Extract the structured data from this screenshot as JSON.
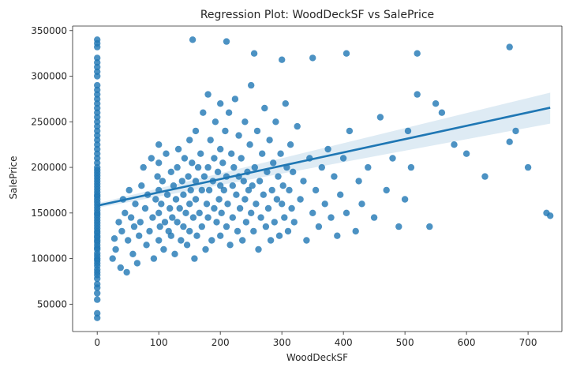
{
  "chart_data": {
    "type": "scatter",
    "title": "Regression Plot: WoodDeckSF vs SalePrice",
    "xlabel": "WoodDeckSF",
    "ylabel": "SalePrice",
    "xlim": [
      -40,
      755
    ],
    "ylim": [
      20000,
      355000
    ],
    "x_ticks": [
      0,
      100,
      200,
      300,
      400,
      500,
      600,
      700
    ],
    "y_ticks": [
      50000,
      100000,
      150000,
      200000,
      250000,
      300000,
      350000
    ],
    "x_tick_labels": [
      "0",
      "100",
      "200",
      "300",
      "400",
      "500",
      "600",
      "700"
    ],
    "y_tick_labels": [
      "50000",
      "100000",
      "150000",
      "200000",
      "250000",
      "300000",
      "350000"
    ],
    "grid": false,
    "legend": "none",
    "colors": {
      "points": "#1f77b4",
      "line": "#1f77b4",
      "band": "#1f77b4",
      "spine": "#262626",
      "text": "#262626"
    },
    "regression": {
      "x_range": [
        0,
        736
      ],
      "intercept": 158000,
      "slope": 146,
      "ci_lower_at_end": 248000,
      "ci_upper_at_end": 282000,
      "ci_lower_at_start": 155500,
      "ci_upper_at_start": 160500
    },
    "points": [
      [
        0,
        35000
      ],
      [
        0,
        40000
      ],
      [
        0,
        55000
      ],
      [
        0,
        62000
      ],
      [
        0,
        68000
      ],
      [
        0,
        72000
      ],
      [
        0,
        78000
      ],
      [
        0,
        82000
      ],
      [
        0,
        85000
      ],
      [
        0,
        88000
      ],
      [
        0,
        92000
      ],
      [
        0,
        95000
      ],
      [
        0,
        98000
      ],
      [
        0,
        100000
      ],
      [
        0,
        103000
      ],
      [
        0,
        106000
      ],
      [
        0,
        110000
      ],
      [
        0,
        112000
      ],
      [
        0,
        115000
      ],
      [
        0,
        118000
      ],
      [
        0,
        120000
      ],
      [
        0,
        123000
      ],
      [
        0,
        125000
      ],
      [
        0,
        128000
      ],
      [
        0,
        130000
      ],
      [
        0,
        133000
      ],
      [
        0,
        136000
      ],
      [
        0,
        139000
      ],
      [
        0,
        142000
      ],
      [
        0,
        145000
      ],
      [
        0,
        148000
      ],
      [
        0,
        150000
      ],
      [
        0,
        153000
      ],
      [
        0,
        156000
      ],
      [
        0,
        159000
      ],
      [
        0,
        162000
      ],
      [
        0,
        165000
      ],
      [
        0,
        168000
      ],
      [
        0,
        170000
      ],
      [
        0,
        173000
      ],
      [
        0,
        176000
      ],
      [
        0,
        179000
      ],
      [
        0,
        182000
      ],
      [
        0,
        185000
      ],
      [
        0,
        188000
      ],
      [
        0,
        191000
      ],
      [
        0,
        194000
      ],
      [
        0,
        197000
      ],
      [
        0,
        200000
      ],
      [
        0,
        205000
      ],
      [
        0,
        210000
      ],
      [
        0,
        215000
      ],
      [
        0,
        220000
      ],
      [
        0,
        225000
      ],
      [
        0,
        230000
      ],
      [
        0,
        235000
      ],
      [
        0,
        240000
      ],
      [
        0,
        245000
      ],
      [
        0,
        250000
      ],
      [
        0,
        255000
      ],
      [
        0,
        260000
      ],
      [
        0,
        265000
      ],
      [
        0,
        270000
      ],
      [
        0,
        275000
      ],
      [
        0,
        280000
      ],
      [
        0,
        285000
      ],
      [
        0,
        290000
      ],
      [
        0,
        300000
      ],
      [
        0,
        305000
      ],
      [
        0,
        310000
      ],
      [
        0,
        315000
      ],
      [
        0,
        320000
      ],
      [
        0,
        332000
      ],
      [
        0,
        336000
      ],
      [
        0,
        340000
      ],
      [
        25,
        100000
      ],
      [
        28,
        122000
      ],
      [
        30,
        110000
      ],
      [
        35,
        140000
      ],
      [
        38,
        90000
      ],
      [
        40,
        130000
      ],
      [
        42,
        165000
      ],
      [
        45,
        150000
      ],
      [
        48,
        85000
      ],
      [
        50,
        120000
      ],
      [
        52,
        175000
      ],
      [
        55,
        145000
      ],
      [
        58,
        105000
      ],
      [
        60,
        135000
      ],
      [
        62,
        160000
      ],
      [
        65,
        95000
      ],
      [
        68,
        125000
      ],
      [
        70,
        140000
      ],
      [
        72,
        180000
      ],
      [
        75,
        200000
      ],
      [
        78,
        155000
      ],
      [
        80,
        115000
      ],
      [
        82,
        170000
      ],
      [
        85,
        130000
      ],
      [
        88,
        210000
      ],
      [
        90,
        145000
      ],
      [
        92,
        100000
      ],
      [
        95,
        165000
      ],
      [
        98,
        190000
      ],
      [
        100,
        120000
      ],
      [
        100,
        150000
      ],
      [
        100,
        175000
      ],
      [
        100,
        205000
      ],
      [
        100,
        225000
      ],
      [
        102,
        135000
      ],
      [
        104,
        160000
      ],
      [
        106,
        185000
      ],
      [
        108,
        110000
      ],
      [
        110,
        140000
      ],
      [
        112,
        215000
      ],
      [
        114,
        170000
      ],
      [
        116,
        130000
      ],
      [
        118,
        155000
      ],
      [
        120,
        195000
      ],
      [
        120,
        125000
      ],
      [
        122,
        145000
      ],
      [
        124,
        180000
      ],
      [
        126,
        105000
      ],
      [
        128,
        165000
      ],
      [
        130,
        200000
      ],
      [
        130,
        140000
      ],
      [
        132,
        220000
      ],
      [
        134,
        155000
      ],
      [
        136,
        120000
      ],
      [
        138,
        185000
      ],
      [
        140,
        170000
      ],
      [
        140,
        135000
      ],
      [
        142,
        210000
      ],
      [
        144,
        150000
      ],
      [
        146,
        115000
      ],
      [
        148,
        190000
      ],
      [
        150,
        160000
      ],
      [
        150,
        230000
      ],
      [
        150,
        130000
      ],
      [
        152,
        175000
      ],
      [
        154,
        205000
      ],
      [
        156,
        145000
      ],
      [
        158,
        100000
      ],
      [
        160,
        185000
      ],
      [
        160,
        240000
      ],
      [
        160,
        165000
      ],
      [
        162,
        125000
      ],
      [
        164,
        200000
      ],
      [
        166,
        150000
      ],
      [
        168,
        215000
      ],
      [
        170,
        175000
      ],
      [
        170,
        135000
      ],
      [
        172,
        260000
      ],
      [
        174,
        190000
      ],
      [
        176,
        110000
      ],
      [
        178,
        160000
      ],
      [
        180,
        200000
      ],
      [
        180,
        145000
      ],
      [
        180,
        280000
      ],
      [
        182,
        175000
      ],
      [
        184,
        230000
      ],
      [
        186,
        120000
      ],
      [
        188,
        185000
      ],
      [
        190,
        155000
      ],
      [
        190,
        210000
      ],
      [
        192,
        250000
      ],
      [
        194,
        140000
      ],
      [
        196,
        195000
      ],
      [
        198,
        165000
      ],
      [
        200,
        180000
      ],
      [
        200,
        125000
      ],
      [
        200,
        220000
      ],
      [
        200,
        270000
      ],
      [
        202,
        150000
      ],
      [
        204,
        205000
      ],
      [
        206,
        175000
      ],
      [
        208,
        240000
      ],
      [
        210,
        135000
      ],
      [
        210,
        190000
      ],
      [
        212,
        160000
      ],
      [
        214,
        260000
      ],
      [
        216,
        115000
      ],
      [
        218,
        215000
      ],
      [
        220,
        180000
      ],
      [
        220,
        145000
      ],
      [
        222,
        200000
      ],
      [
        224,
        275000
      ],
      [
        226,
        170000
      ],
      [
        228,
        130000
      ],
      [
        230,
        190000
      ],
      [
        230,
        235000
      ],
      [
        232,
        155000
      ],
      [
        234,
        210000
      ],
      [
        236,
        120000
      ],
      [
        238,
        185000
      ],
      [
        240,
        165000
      ],
      [
        240,
        250000
      ],
      [
        242,
        140000
      ],
      [
        244,
        195000
      ],
      [
        246,
        175000
      ],
      [
        248,
        225000
      ],
      [
        250,
        150000
      ],
      [
        250,
        290000
      ],
      [
        252,
        180000
      ],
      [
        254,
        130000
      ],
      [
        256,
        200000
      ],
      [
        258,
        160000
      ],
      [
        260,
        240000
      ],
      [
        262,
        110000
      ],
      [
        264,
        185000
      ],
      [
        266,
        145000
      ],
      [
        268,
        215000
      ],
      [
        270,
        170000
      ],
      [
        272,
        265000
      ],
      [
        274,
        135000
      ],
      [
        276,
        195000
      ],
      [
        278,
        155000
      ],
      [
        280,
        230000
      ],
      [
        282,
        120000
      ],
      [
        284,
        175000
      ],
      [
        286,
        205000
      ],
      [
        288,
        140000
      ],
      [
        290,
        250000
      ],
      [
        292,
        165000
      ],
      [
        294,
        190000
      ],
      [
        296,
        125000
      ],
      [
        298,
        215000
      ],
      [
        300,
        160000
      ],
      [
        302,
        180000
      ],
      [
        304,
        145000
      ],
      [
        306,
        270000
      ],
      [
        308,
        200000
      ],
      [
        310,
        130000
      ],
      [
        312,
        175000
      ],
      [
        314,
        225000
      ],
      [
        316,
        155000
      ],
      [
        318,
        195000
      ],
      [
        320,
        140000
      ],
      [
        325,
        245000
      ],
      [
        330,
        165000
      ],
      [
        335,
        185000
      ],
      [
        340,
        120000
      ],
      [
        345,
        210000
      ],
      [
        350,
        150000
      ],
      [
        355,
        175000
      ],
      [
        360,
        135000
      ],
      [
        365,
        200000
      ],
      [
        370,
        160000
      ],
      [
        375,
        220000
      ],
      [
        380,
        145000
      ],
      [
        385,
        190000
      ],
      [
        390,
        125000
      ],
      [
        395,
        170000
      ],
      [
        400,
        210000
      ],
      [
        405,
        150000
      ],
      [
        410,
        240000
      ],
      [
        420,
        130000
      ],
      [
        425,
        185000
      ],
      [
        430,
        160000
      ],
      [
        440,
        200000
      ],
      [
        450,
        145000
      ],
      [
        460,
        255000
      ],
      [
        470,
        175000
      ],
      [
        480,
        210000
      ],
      [
        490,
        135000
      ],
      [
        500,
        165000
      ],
      [
        505,
        240000
      ],
      [
        510,
        200000
      ],
      [
        520,
        280000
      ],
      [
        540,
        135000
      ],
      [
        550,
        270000
      ],
      [
        560,
        260000
      ],
      [
        580,
        225000
      ],
      [
        600,
        215000
      ],
      [
        630,
        190000
      ],
      [
        670,
        228000
      ],
      [
        680,
        240000
      ],
      [
        700,
        200000
      ],
      [
        730,
        150000
      ],
      [
        736,
        147000
      ],
      [
        670,
        332000
      ],
      [
        520,
        325000
      ],
      [
        405,
        325000
      ],
      [
        350,
        320000
      ],
      [
        300,
        318000
      ],
      [
        255,
        325000
      ],
      [
        210,
        338000
      ],
      [
        155,
        340000
      ]
    ]
  }
}
